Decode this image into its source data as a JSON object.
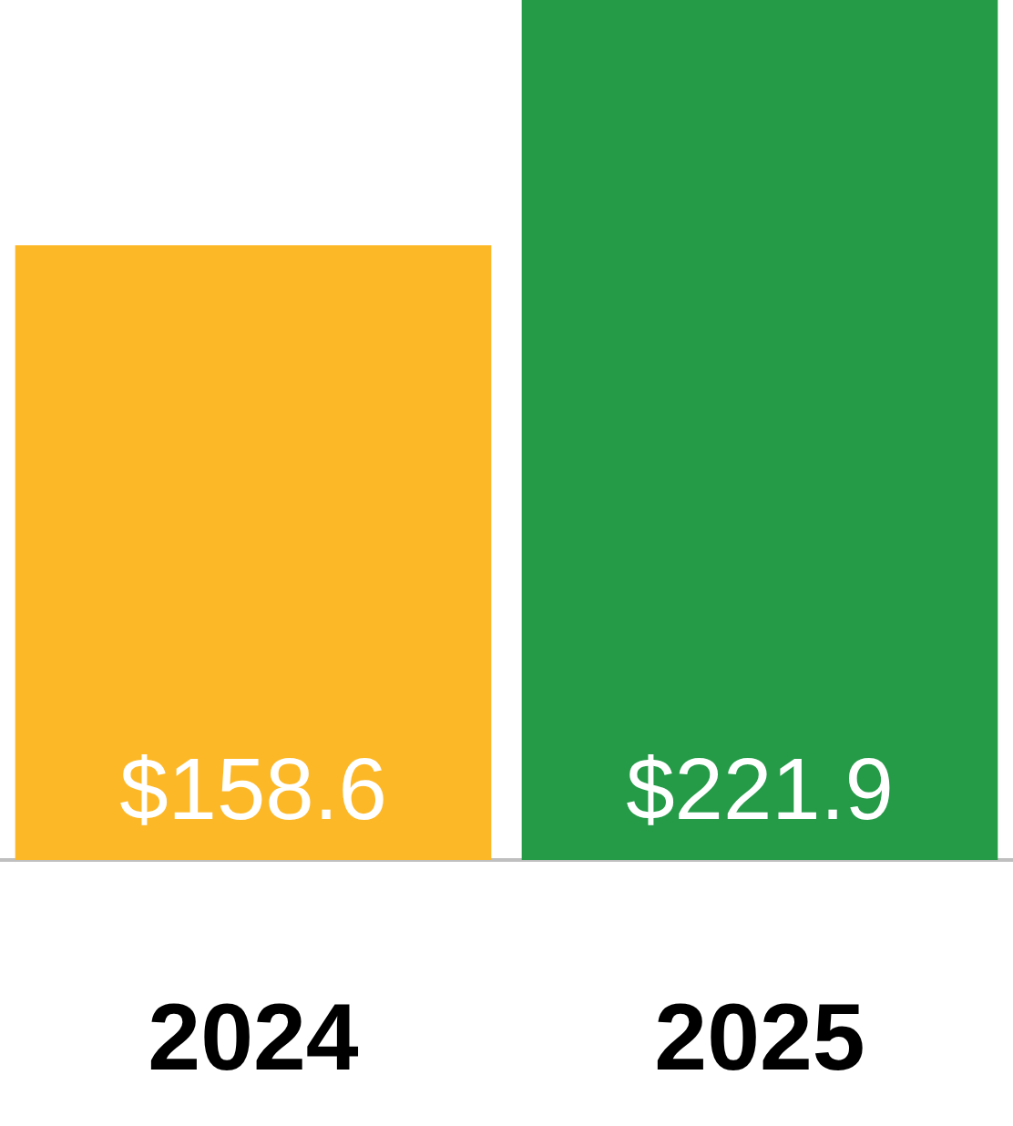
{
  "chart_data": {
    "type": "bar",
    "categories": [
      "2024",
      "2025"
    ],
    "values": [
      158.6,
      221.9
    ],
    "colors": [
      "#fdb827",
      "#259b48"
    ],
    "value_labels": [
      "$158.6",
      "$221.9"
    ]
  }
}
